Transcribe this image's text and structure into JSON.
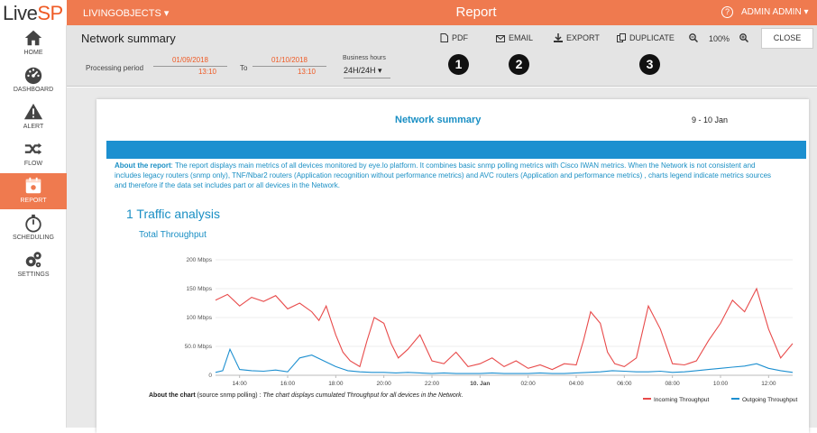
{
  "app": {
    "logo_a": "Live",
    "logo_b": "SP",
    "title": "Report",
    "objects_menu": "LIVINGOBJECTS ▾",
    "user_menu": "ADMIN ADMIN ▾",
    "help_icon": "question-circle-icon"
  },
  "sidebar": {
    "items": [
      {
        "label": "HOME",
        "icon": "home-icon"
      },
      {
        "label": "DASHBOARD",
        "icon": "dashboard-icon"
      },
      {
        "label": "ALERT",
        "icon": "alert-icon"
      },
      {
        "label": "FLOW",
        "icon": "flow-icon"
      },
      {
        "label": "REPORT",
        "icon": "report-icon"
      },
      {
        "label": "SCHEDULING",
        "icon": "stopwatch-icon"
      },
      {
        "label": "SETTINGS",
        "icon": "gears-icon"
      }
    ],
    "active": "REPORT"
  },
  "toolbar": {
    "heading": "Network summary",
    "pdf": "PDF",
    "email": "EMAIL",
    "export": "EXPORT",
    "duplicate": "DUPLICATE",
    "zoom": "100%",
    "close": "CLOSE",
    "period_label": "Processing period",
    "from_date": "01/09/2018",
    "from_time": "13:10",
    "to_label": "To",
    "to_date": "01/10/2018",
    "to_time": "13:10",
    "business_hours_label": "Business hours",
    "business_hours_value": "24H/24H ▾",
    "markers": [
      "1",
      "2",
      "3"
    ]
  },
  "report": {
    "title": "Network summary",
    "date": "9 - 10 Jan",
    "about_label": "About the report",
    "about_text": ": The report displays main metrics of all devices monitored by eye.lo platform. It combines basic snmp polling metrics with Cisco IWAN metrics. When the Network is not consistent and includes legacy routers (snmp only), TNF/Nbar2 routers (Application recognition without performance metrics) and AVC routers (Application and performance metrics) , charts legend indicate metrics sources and therefore if the data set includes part or all devices in the Network.",
    "section": "1 Traffic analysis",
    "chart_title": "Total Throughput",
    "about_chart_label": "About the chart",
    "about_chart_source": " (source snmp polling) : ",
    "about_chart_text": "The chart displays cumulated Throughput for all devices in the Network."
  },
  "colors": {
    "accent": "#ef7a4f",
    "link": "#1a8fc4",
    "incoming": "#e84a4a",
    "outgoing": "#1c8fd0"
  },
  "chart_data": {
    "type": "line",
    "title": "Total Throughput",
    "ylim": [
      0,
      200
    ],
    "yticks": [
      "0",
      "50.0 Mbps",
      "100 Mbps",
      "150 Mbps",
      "200 Mbps"
    ],
    "ytick_values": [
      0,
      50,
      100,
      150,
      200
    ],
    "xticks": [
      "14:00",
      "16:00",
      "18:00",
      "20:00",
      "22:00",
      "10. Jan",
      "02:00",
      "04:00",
      "06:00",
      "08:00",
      "10:00",
      "12:00"
    ],
    "x_start_hour": 13.0,
    "x_end_hour": 37.0,
    "legend_position": "bottom-right",
    "series": [
      {
        "name": "Incoming Throughput",
        "color": "#e84a4a",
        "x": [
          13.0,
          13.5,
          14.0,
          14.5,
          15.0,
          15.5,
          16.0,
          16.5,
          17.0,
          17.3,
          17.6,
          18.0,
          18.3,
          18.6,
          19.0,
          19.3,
          19.6,
          20.0,
          20.3,
          20.6,
          21.0,
          21.5,
          22.0,
          22.5,
          23.0,
          23.5,
          24.0,
          24.5,
          25.0,
          25.5,
          26.0,
          26.5,
          27.0,
          27.5,
          28.0,
          28.3,
          28.6,
          29.0,
          29.3,
          29.6,
          30.0,
          30.5,
          31.0,
          31.5,
          32.0,
          32.5,
          33.0,
          33.5,
          34.0,
          34.5,
          35.0,
          35.5,
          36.0,
          36.5,
          37.0
        ],
        "y": [
          130,
          140,
          120,
          135,
          128,
          138,
          115,
          125,
          110,
          95,
          120,
          70,
          40,
          25,
          15,
          60,
          100,
          90,
          55,
          30,
          45,
          70,
          25,
          20,
          40,
          15,
          20,
          30,
          15,
          25,
          12,
          18,
          10,
          20,
          18,
          60,
          110,
          90,
          40,
          20,
          15,
          30,
          120,
          80,
          20,
          18,
          25,
          60,
          90,
          130,
          110,
          150,
          80,
          30,
          55
        ]
      },
      {
        "name": "Outgoing Throughput",
        "color": "#1c8fd0",
        "x": [
          13.0,
          13.3,
          13.6,
          14.0,
          14.5,
          15.0,
          15.5,
          16.0,
          16.5,
          17.0,
          17.5,
          18.0,
          18.5,
          19.0,
          19.5,
          20.0,
          20.5,
          21.0,
          21.5,
          22.0,
          22.5,
          23.0,
          23.5,
          24.0,
          24.5,
          25.0,
          25.5,
          26.0,
          26.5,
          27.0,
          27.5,
          28.0,
          28.5,
          29.0,
          29.5,
          30.0,
          30.5,
          31.0,
          31.5,
          32.0,
          32.5,
          33.0,
          33.5,
          34.0,
          34.5,
          35.0,
          35.5,
          36.0,
          36.5,
          37.0
        ],
        "y": [
          5,
          8,
          45,
          10,
          8,
          7,
          9,
          6,
          30,
          35,
          25,
          15,
          8,
          6,
          5,
          5,
          4,
          5,
          4,
          3,
          4,
          3,
          3,
          3,
          4,
          3,
          3,
          3,
          4,
          3,
          3,
          4,
          5,
          6,
          8,
          7,
          6,
          6,
          7,
          5,
          6,
          8,
          10,
          12,
          14,
          16,
          20,
          12,
          8,
          5
        ]
      }
    ]
  }
}
